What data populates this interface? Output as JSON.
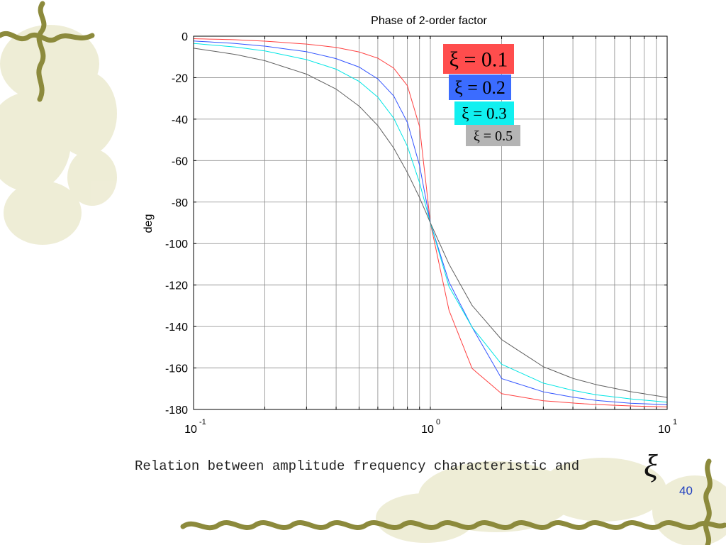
{
  "chart_data": {
    "type": "line",
    "title": "Phase of 2-order factor",
    "xlabel": "",
    "ylabel": "deg",
    "x_scale": "log",
    "xlim": [
      0.1,
      10
    ],
    "ylim": [
      -180,
      0
    ],
    "grid": true,
    "x_tick_labels": [
      {
        "base": "10",
        "exp": "-1",
        "value": 0.1
      },
      {
        "base": "10",
        "exp": "0",
        "value": 1
      },
      {
        "base": "10",
        "exp": "1",
        "value": 10
      }
    ],
    "y_ticks": [
      0,
      -20,
      -40,
      -60,
      -80,
      -100,
      -120,
      -140,
      -160,
      -180
    ],
    "x": [
      0.1,
      0.15,
      0.2,
      0.3,
      0.4,
      0.5,
      0.6,
      0.7,
      0.8,
      0.9,
      1.0,
      1.2,
      1.5,
      2,
      3,
      4,
      5,
      7,
      10
    ],
    "series": [
      {
        "name": "ξ = 0.1",
        "color": "#ff4040",
        "values": [
          -1.2,
          -1.7,
          -2.4,
          -3.8,
          -5.4,
          -7.6,
          -10.6,
          -15.4,
          -23.9,
          -43.5,
          -90,
          -132.3,
          -160.2,
          -172.4,
          -175.8,
          -176.9,
          -177.6,
          -178.3,
          -178.8
        ]
      },
      {
        "name": "ξ = 0.2",
        "color": "#3355ff",
        "values": [
          -2.3,
          -3.5,
          -4.8,
          -7.5,
          -10.8,
          -14.9,
          -20.6,
          -28.8,
          -41.6,
          -62.2,
          -90,
          -118.6,
          -140.3,
          -165.1,
          -171.5,
          -174.1,
          -175.6,
          -177.0,
          -177.7
        ]
      },
      {
        "name": "ξ = 0.3",
        "color": "#00e5e5",
        "values": [
          -3.5,
          -5.2,
          -7.1,
          -11.3,
          -15.9,
          -21.8,
          -29.4,
          -39.5,
          -53.1,
          -70.6,
          -90,
          -120.8,
          -140.3,
          -158.2,
          -167.3,
          -170.8,
          -172.9,
          -174.9,
          -176.5
        ]
      },
      {
        "name": "ξ = 0.5",
        "color": "#606060",
        "values": [
          -5.8,
          -8.8,
          -11.8,
          -18.3,
          -25.5,
          -33.7,
          -43.1,
          -53.9,
          -65.8,
          -77.8,
          -90,
          -110.0,
          -129.8,
          -146.3,
          -159.4,
          -165.0,
          -168.0,
          -171.4,
          -174.2
        ]
      }
    ],
    "legend": [
      {
        "label": "ξ = 0.1",
        "box_color": "#ff4d4d"
      },
      {
        "label": "ξ = 0.2",
        "box_color": "#3b6cff"
      },
      {
        "label": "ξ = 0.3",
        "box_color": "#11f0f0"
      },
      {
        "label": "ξ = 0.5",
        "box_color": "#b4b4b4"
      }
    ]
  },
  "caption": "Relation between amplitude frequency characteristic and",
  "caption_symbol": "ξ",
  "page_number": "40",
  "colors": {
    "page_number": "#1f3fbf",
    "decoration_vine": "#8a8a3a",
    "decoration_leaf": "#ece9c9"
  }
}
